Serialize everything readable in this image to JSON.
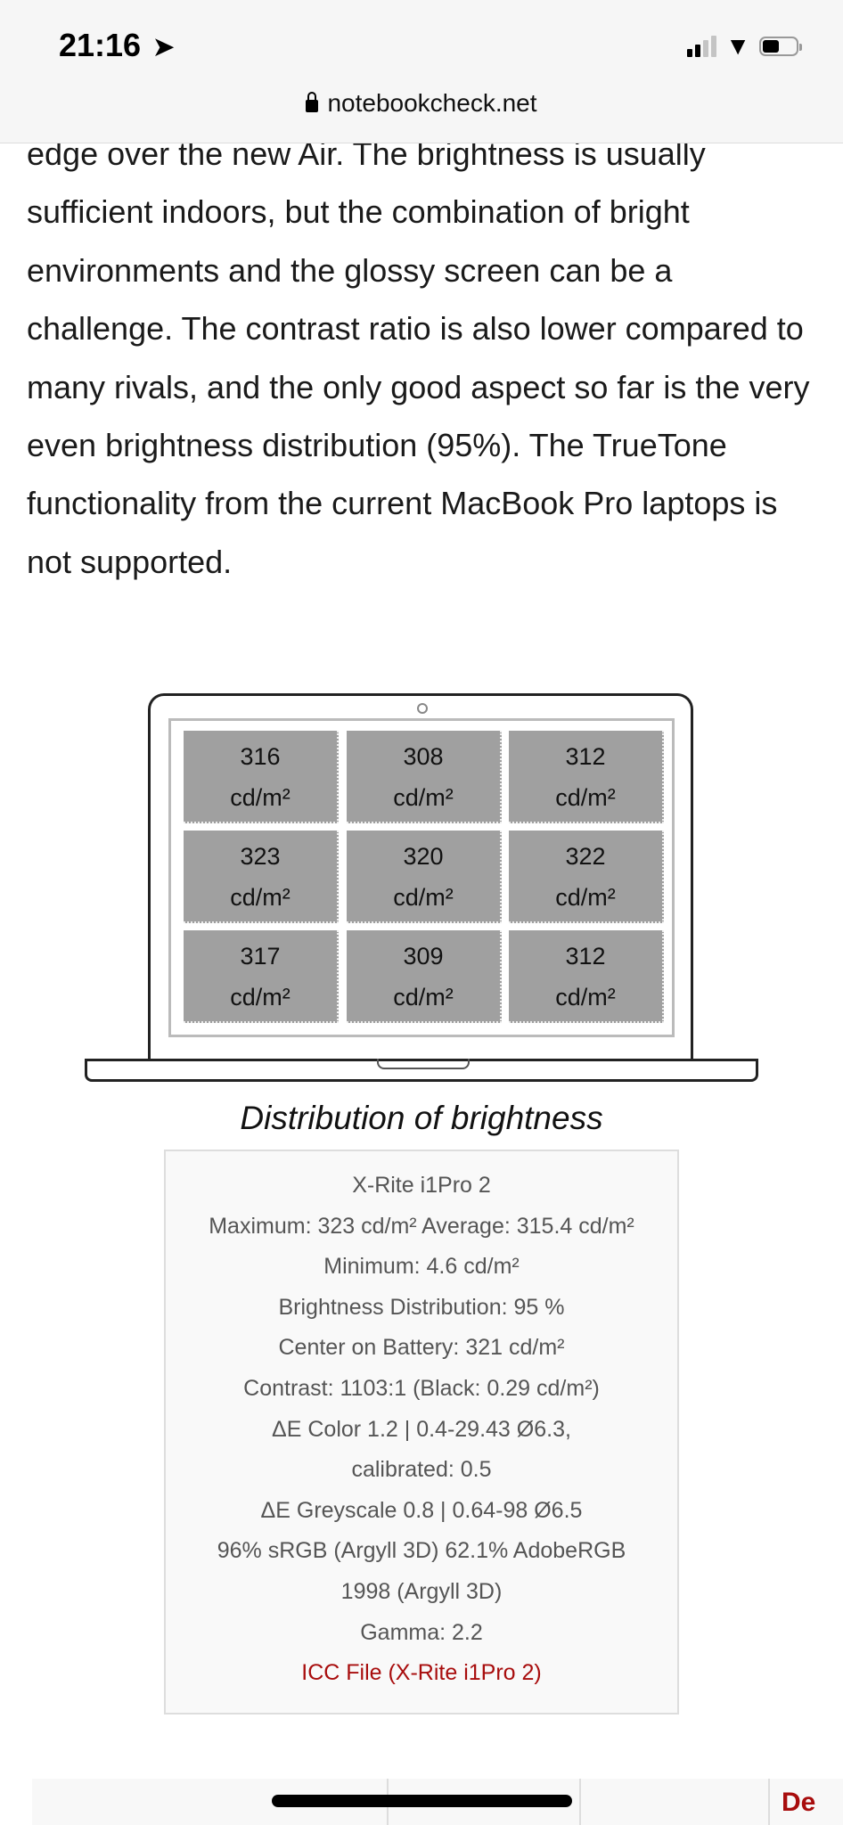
{
  "status_bar": {
    "time": "21:16",
    "location_icon": "location-arrow-icon",
    "signal_bars_active": 2,
    "signal_bars_total": 4,
    "battery_level": 0.5
  },
  "browser": {
    "url": "notebookcheck.net",
    "lock_icon": "lock-icon"
  },
  "article": {
    "paragraph": "edge over the new Air. The brightness is usually sufficient indoors, but the combination of bright environments and the glossy screen can be a challenge. The contrast ratio is also lower compared to many rivals, and the only good aspect so far is the very even brightness distribution (95%). The TrueTone functionality from the current MacBook Pro laptops is not supported."
  },
  "brightness_grid": {
    "unit": "cd/m²",
    "values": [
      "316",
      "308",
      "312",
      "323",
      "320",
      "322",
      "317",
      "309",
      "312"
    ]
  },
  "caption": "Distribution of brightness",
  "measurements": {
    "lines": [
      "X-Rite i1Pro 2",
      "Maximum: 323 cd/m² Average: 315.4 cd/m²",
      "Minimum: 4.6 cd/m²",
      "Brightness Distribution: 95 %",
      "Center on Battery: 321 cd/m²",
      "Contrast: 1103:1 (Black: 0.29 cd/m²)",
      "ΔE Color 1.2 | 0.4-29.43 Ø6.3,",
      "calibrated: 0.5",
      "ΔE Greyscale 0.8 | 0.64-98 Ø6.5",
      "96% sRGB (Argyll 3D) 62.1% AdobeRGB",
      "1998 (Argyll 3D)",
      "Gamma: 2.2"
    ],
    "link": "ICC File (X-Rite i1Pro 2)",
    "link_color": "#a80d0d"
  },
  "bottom_bar": {
    "partial_label": "De"
  }
}
